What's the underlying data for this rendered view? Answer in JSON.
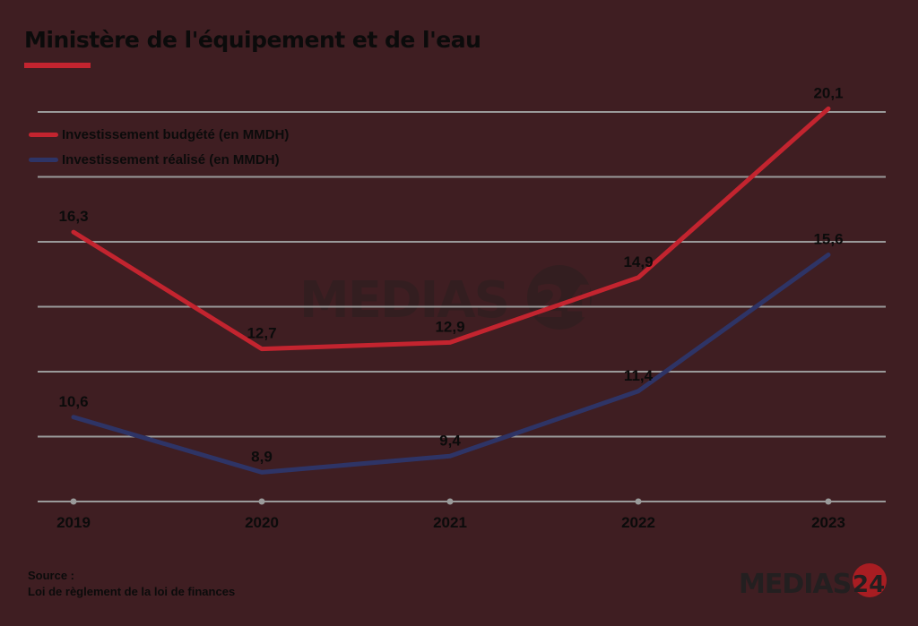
{
  "header": {
    "title": "Ministère de l'équipement et de l'eau",
    "accent_color": "#c3242f"
  },
  "legend": {
    "items": [
      {
        "label": "Investissement budgété (en MMDH)",
        "color": "#c3242f"
      },
      {
        "label": "Investissement réalisé (en MMDH)",
        "color": "#2e3466"
      }
    ]
  },
  "footer": {
    "source_label": "Source :",
    "source_text": "Loi de règlement de la loi de finances"
  },
  "branding": {
    "logo_text": "MEDIAS",
    "logo_number": "24",
    "logo_circle_color": "#a81d22"
  },
  "chart_data": {
    "type": "line",
    "title": "Ministère de l'équipement et de l'eau",
    "categories": [
      "2019",
      "2020",
      "2021",
      "2022",
      "2023"
    ],
    "series": [
      {
        "name": "Investissement budgété (en MMDH)",
        "color": "#c3242f",
        "values": [
          16.3,
          12.7,
          12.9,
          14.9,
          20.1
        ],
        "labels": [
          "16,3",
          "12,7",
          "12,9",
          "14,9",
          "20,1"
        ]
      },
      {
        "name": "Investissement réalisé (en MMDH)",
        "color": "#2e3466",
        "values": [
          10.6,
          8.9,
          9.4,
          11.4,
          15.6
        ],
        "labels": [
          "10,6",
          "8,9",
          "9,4",
          "11,4",
          "15,6"
        ]
      }
    ],
    "xlabel": "",
    "ylabel": "",
    "ylim": [
      8,
      20
    ],
    "grid": true,
    "gridline_step": 2,
    "y_tick_labels_visible": false,
    "legend_position": "top-left",
    "source": "Loi de règlement de la loi de finances"
  }
}
